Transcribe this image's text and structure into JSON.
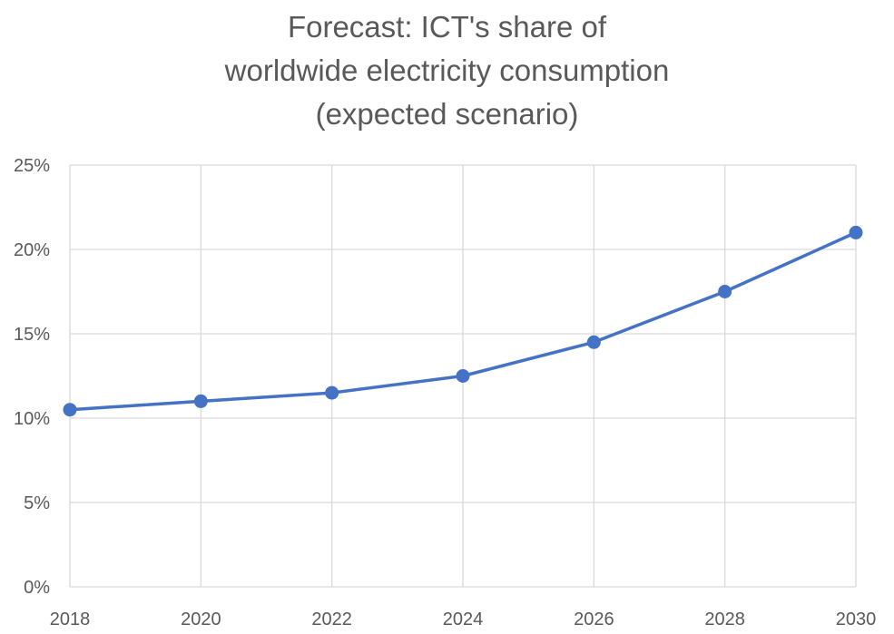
{
  "chart_data": {
    "type": "line",
    "title_lines": [
      "Forecast:  ICT's share of",
      "worldwide electricity consumption",
      "(expected scenario)"
    ],
    "x": [
      2018,
      2020,
      2022,
      2024,
      2026,
      2028,
      2030
    ],
    "x_tick_labels": [
      "2018",
      "2020",
      "2022",
      "2024",
      "2026",
      "2028",
      "2030"
    ],
    "y_tick_labels": [
      "0%",
      "5%",
      "10%",
      "15%",
      "20%",
      "25%"
    ],
    "y_ticks": [
      0,
      5,
      10,
      15,
      20,
      25
    ],
    "ylim": [
      0,
      25
    ],
    "xlim": [
      2018,
      2030
    ],
    "series": [
      {
        "values": [
          10.5,
          11.0,
          11.5,
          12.5,
          14.5,
          17.5,
          21.0
        ]
      }
    ],
    "line_color": "#4472C4",
    "grid": true,
    "grid_color": "#D9D9D9",
    "xlabel": "",
    "ylabel": ""
  }
}
